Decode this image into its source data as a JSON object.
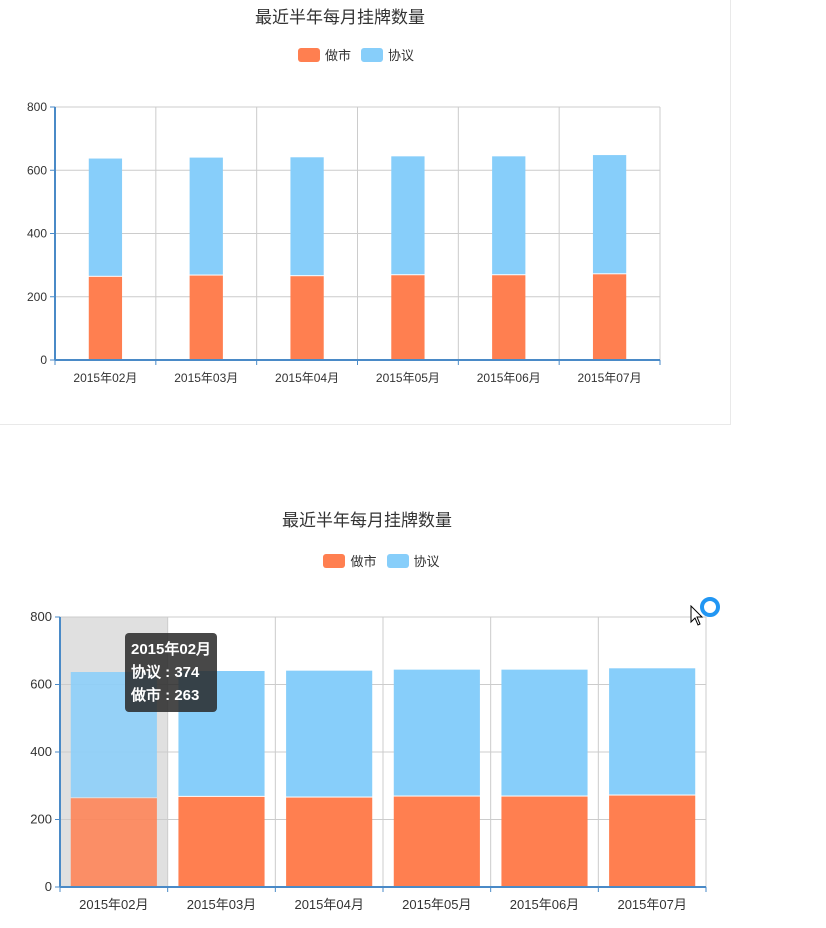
{
  "colors": {
    "market_making": "#ff7f50",
    "agreement": "#87cefa",
    "axis": "#4a8ac7",
    "grid": "#cccccc",
    "highlight": "#e0e0e0"
  },
  "chart_data": [
    {
      "type": "bar",
      "stacked": true,
      "title": "最近半年每月挂牌数量",
      "legend": [
        "做市",
        "协议"
      ],
      "legend_position": "top-center",
      "categories": [
        "2015年02月",
        "2015年03月",
        "2015年04月",
        "2015年05月",
        "2015年06月",
        "2015年07月"
      ],
      "series": [
        {
          "name": "做市",
          "values": [
            263,
            267,
            265,
            268,
            268,
            271
          ]
        },
        {
          "name": "协议",
          "values": [
            374,
            373,
            376,
            376,
            376,
            377
          ]
        }
      ],
      "y_ticks": [
        0,
        200,
        400,
        600,
        800
      ],
      "ylim": [
        0,
        800
      ],
      "grid": true
    },
    {
      "type": "bar",
      "stacked": true,
      "title": "最近半年每月挂牌数量",
      "legend": [
        "做市",
        "协议"
      ],
      "legend_position": "top-center",
      "categories": [
        "2015年02月",
        "2015年03月",
        "2015年04月",
        "2015年05月",
        "2015年06月",
        "2015年07月"
      ],
      "series": [
        {
          "name": "做市",
          "values": [
            263,
            267,
            265,
            268,
            268,
            271
          ]
        },
        {
          "name": "协议",
          "values": [
            374,
            373,
            376,
            376,
            376,
            377
          ]
        }
      ],
      "y_ticks": [
        0,
        200,
        400,
        600,
        800
      ],
      "ylim": [
        0,
        800
      ],
      "grid": true,
      "highlighted_category": "2015年02月"
    }
  ],
  "tooltip": {
    "title": "2015年02月",
    "lines": [
      "协议 : 374",
      "做市 : 263"
    ]
  }
}
